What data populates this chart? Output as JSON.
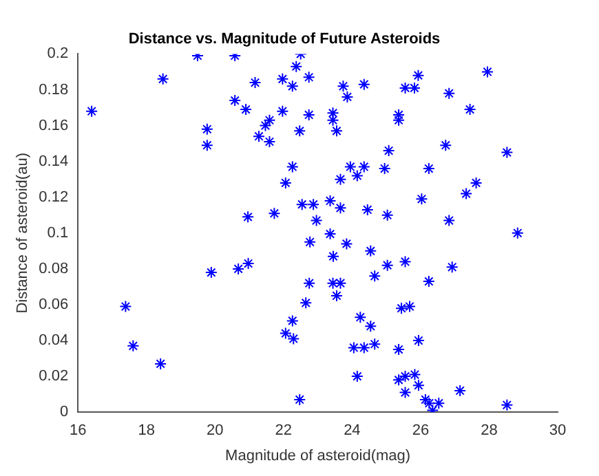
{
  "chart_data": {
    "type": "scatter",
    "title": "Distance vs. Magnitude of Future Asteroids",
    "xlabel": "Magnitude of asteroid(mag)",
    "ylabel": "Distance of asteroid(au)",
    "xlim": [
      16,
      30
    ],
    "xticks": [
      16,
      18,
      20,
      22,
      24,
      26,
      28,
      30
    ],
    "ylim": [
      0,
      0.2
    ],
    "yticks": [
      0,
      0.02,
      0.04,
      0.06,
      0.08,
      0.1,
      0.12,
      0.14,
      0.16,
      0.18,
      0.2
    ],
    "grid": false,
    "legend": false,
    "marker": "cross",
    "series": [
      {
        "color": "#0000ff",
        "x": [
          16.4,
          18.48,
          19.49,
          20.58,
          19.77,
          19.77,
          20.58,
          20.9,
          21.17,
          21.28,
          21.47,
          21.59,
          21.59,
          21.97,
          21.97,
          22.26,
          22.5,
          22.37,
          22.47,
          22.26,
          22.06,
          22.54,
          21.73,
          20.96,
          22.74,
          22.74,
          22.77,
          23.74,
          24.35,
          23.86,
          25.93,
          25.55,
          25.82,
          27.95,
          26.83,
          27.44,
          23.44,
          23.44,
          25.36,
          25.36,
          23.55,
          25.07,
          26.73,
          28.52,
          23.95,
          24.35,
          24.95,
          26.24,
          23.66,
          24.15,
          27.62,
          27.33,
          26.03,
          22.87,
          23.36,
          23.66,
          24.45,
          25.03,
          22.96,
          26.83,
          28.83,
          23.36,
          17.39,
          17.61,
          18.41,
          19.89,
          20.68,
          20.97,
          22.75,
          22.65,
          22.26,
          22.06,
          22.29,
          22.47,
          23.84,
          23.45,
          24.54,
          25.03,
          25.55,
          26.92,
          24.66,
          23.44,
          23.66,
          23.55,
          26.24,
          25.44,
          25.68,
          24.24,
          24.54,
          24.66,
          24.05,
          24.35,
          25.36,
          25.94,
          24.15,
          25.36,
          25.55,
          25.83,
          25.94,
          25.55,
          27.15,
          26.14,
          26.25,
          26.53,
          26.35,
          28.52
        ],
        "values": [
          0.168,
          0.186,
          0.199,
          0.199,
          0.158,
          0.149,
          0.174,
          0.169,
          0.184,
          0.154,
          0.16,
          0.163,
          0.151,
          0.186,
          0.168,
          0.182,
          0.2,
          0.193,
          0.157,
          0.137,
          0.128,
          0.116,
          0.111,
          0.109,
          0.187,
          0.166,
          0.095,
          0.182,
          0.183,
          0.176,
          0.188,
          0.181,
          0.181,
          0.19,
          0.178,
          0.169,
          0.167,
          0.163,
          0.166,
          0.163,
          0.157,
          0.146,
          0.149,
          0.145,
          0.137,
          0.137,
          0.136,
          0.136,
          0.13,
          0.132,
          0.128,
          0.122,
          0.119,
          0.116,
          0.118,
          0.114,
          0.113,
          0.11,
          0.107,
          0.107,
          0.1,
          0.0995,
          0.059,
          0.037,
          0.027,
          0.078,
          0.08,
          0.083,
          0.072,
          0.061,
          0.051,
          0.044,
          0.041,
          0.007,
          0.094,
          0.087,
          0.09,
          0.082,
          0.084,
          0.081,
          0.076,
          0.072,
          0.072,
          0.065,
          0.073,
          0.058,
          0.059,
          0.053,
          0.048,
          0.038,
          0.036,
          0.036,
          0.035,
          0.04,
          0.02,
          0.018,
          0.02,
          0.021,
          0.015,
          0.011,
          0.012,
          0.007,
          0.005,
          0.005,
          0.001,
          0.004
        ]
      }
    ]
  }
}
